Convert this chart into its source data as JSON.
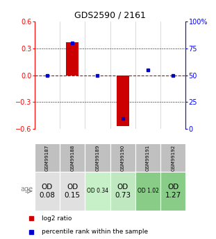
{
  "title": "GDS2590 / 2161",
  "samples": [
    "GSM99187",
    "GSM99188",
    "GSM99189",
    "GSM99190",
    "GSM99191",
    "GSM99192"
  ],
  "log2_ratio": [
    0.0,
    0.37,
    0.0,
    -0.57,
    0.0,
    0.0
  ],
  "percentile_rank": [
    50,
    80,
    50,
    10,
    55,
    50
  ],
  "ylim_left": [
    -0.6,
    0.6
  ],
  "ylim_right": [
    0,
    100
  ],
  "yticks_left": [
    -0.6,
    -0.3,
    0.0,
    0.3,
    0.6
  ],
  "yticks_right": [
    0,
    25,
    50,
    75,
    100
  ],
  "ytick_labels_right": [
    "0",
    "25",
    "50",
    "75",
    "100%"
  ],
  "bar_color": "#cc0000",
  "dot_color": "#0000cc",
  "zero_line_color": "#cc0000",
  "sample_labels": [
    "GSM99187",
    "GSM99188",
    "GSM99189",
    "GSM99190",
    "GSM99191",
    "GSM99192"
  ],
  "age_labels": [
    "OD\n0.08",
    "OD\n0.15",
    "OD 0.34",
    "OD\n0.73",
    "OD 1.02",
    "OD\n1.27"
  ],
  "age_bg_colors": [
    "#e0e0e0",
    "#e0e0e0",
    "#c8f0c8",
    "#c0e8c0",
    "#88cc88",
    "#88cc88"
  ],
  "age_label_large": [
    true,
    true,
    false,
    true,
    false,
    true
  ],
  "sample_bg_color": "#c0c0c0",
  "legend_bar": "log2 ratio",
  "legend_dot": "percentile rank within the sample"
}
